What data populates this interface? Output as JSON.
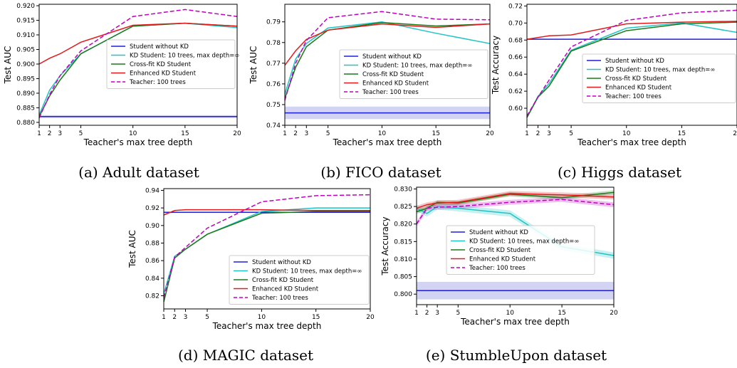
{
  "colors": {
    "student": "#1f1fe0",
    "kd": "#20c4c4",
    "crossfit": "#1a7a1a",
    "enhanced": "#e41a1c",
    "teacher": "#c000c0",
    "band": "#c8c8f0"
  },
  "chart_data": [
    {
      "type": "line",
      "caption": "(a) Adult dataset",
      "xlabel": "Teacher's max tree depth",
      "ylabel": "Test AUC",
      "xlim": [
        1,
        20
      ],
      "ylim": [
        0.879,
        0.9205
      ],
      "xticks": [
        1,
        2,
        3,
        5,
        10,
        15,
        20
      ],
      "yticks": [
        0.88,
        0.885,
        0.89,
        0.895,
        0.9,
        0.905,
        0.91,
        0.915,
        0.92
      ],
      "ytick_labels": [
        "0.880",
        "0.885",
        "0.890",
        "0.895",
        "0.900",
        "0.905",
        "0.910",
        "0.915",
        "0.920"
      ],
      "legend_position": "center-right",
      "x": [
        1,
        2,
        3,
        5,
        10,
        15,
        20
      ],
      "series": [
        {
          "name": "Student without KD",
          "key": "student",
          "values": [
            0.882,
            0.882,
            0.882,
            0.882,
            0.882,
            0.882,
            0.882
          ],
          "band": 0.0005
        },
        {
          "name": "KD Student: 10 trees, max depth=∞",
          "key": "kd",
          "values": [
            0.8825,
            0.891,
            0.896,
            0.9035,
            0.913,
            0.914,
            0.9125
          ]
        },
        {
          "name": "Cross-fit KD Student",
          "key": "crossfit",
          "values": [
            0.882,
            0.889,
            0.8945,
            0.9035,
            0.913,
            0.914,
            0.913
          ]
        },
        {
          "name": "Enhanced KD Student",
          "key": "enhanced",
          "values": [
            0.9,
            0.902,
            0.9035,
            0.9075,
            0.9133,
            0.914,
            0.913
          ]
        },
        {
          "name": "Teacher: 100 trees",
          "key": "teacher",
          "dashed": true,
          "values": [
            0.8815,
            0.8895,
            0.896,
            0.9045,
            0.9163,
            0.9187,
            0.9163
          ]
        }
      ]
    },
    {
      "type": "line",
      "caption": "(b) FICO dataset",
      "xlabel": "Teacher's max tree depth",
      "ylabel": "Test AUC",
      "xlim": [
        1,
        20
      ],
      "ylim": [
        0.74,
        0.7985
      ],
      "xticks": [
        1,
        2,
        3,
        5,
        10,
        15,
        20
      ],
      "yticks": [
        0.74,
        0.75,
        0.76,
        0.77,
        0.78,
        0.79
      ],
      "ytick_labels": [
        "0.74",
        "0.75",
        "0.76",
        "0.77",
        "0.78",
        "0.79"
      ],
      "legend_position": "center-right",
      "x": [
        1,
        2,
        3,
        5,
        10,
        15,
        20
      ],
      "series": [
        {
          "name": "Student without KD",
          "key": "student",
          "values": [
            0.746,
            0.746,
            0.746,
            0.746,
            0.746,
            0.746,
            0.746
          ],
          "band": 0.003
        },
        {
          "name": "KD Student: 10 trees, max depth=∞",
          "key": "kd",
          "values": [
            0.755,
            0.772,
            0.7795,
            0.787,
            0.79,
            0.7845,
            0.7795
          ]
        },
        {
          "name": "Cross-fit KD Student",
          "key": "crossfit",
          "values": [
            0.753,
            0.768,
            0.778,
            0.786,
            0.7897,
            0.788,
            0.789
          ]
        },
        {
          "name": "Enhanced KD Student",
          "key": "enhanced",
          "values": [
            0.769,
            0.776,
            0.7815,
            0.786,
            0.789,
            0.7873,
            0.789
          ]
        },
        {
          "name": "Teacher: 100 trees",
          "key": "teacher",
          "dashed": true,
          "values": [
            0.752,
            0.77,
            0.781,
            0.792,
            0.795,
            0.7913,
            0.791
          ]
        }
      ]
    },
    {
      "type": "line",
      "caption": "(c) Higgs dataset",
      "xlabel": "Teacher's max tree depth",
      "ylabel": "Test Accuracy",
      "xlim": [
        1,
        20
      ],
      "ylim": [
        0.58,
        0.722
      ],
      "xticks": [
        1,
        2,
        3,
        5,
        10,
        15,
        20
      ],
      "yticks": [
        0.6,
        0.62,
        0.64,
        0.66,
        0.68,
        0.7,
        0.72
      ],
      "ytick_labels": [
        "0.60",
        "0.62",
        "0.64",
        "0.66",
        "0.68",
        "0.70",
        "0.72"
      ],
      "legend_position": "bottom-right",
      "x": [
        1,
        2,
        3,
        5,
        10,
        15,
        20
      ],
      "series": [
        {
          "name": "Student without KD",
          "key": "student",
          "values": [
            0.681,
            0.681,
            0.681,
            0.681,
            0.681,
            0.681,
            0.681
          ]
        },
        {
          "name": "KD Student: 10 trees, max depth=∞",
          "key": "kd",
          "values": [
            0.589,
            0.614,
            0.629,
            0.668,
            0.694,
            0.7,
            0.689
          ]
        },
        {
          "name": "Cross-fit KD Student",
          "key": "crossfit",
          "values": [
            0.589,
            0.613,
            0.626,
            0.667,
            0.691,
            0.699,
            0.701
          ]
        },
        {
          "name": "Enhanced KD Student",
          "key": "enhanced",
          "values": [
            0.681,
            0.683,
            0.685,
            0.686,
            0.699,
            0.701,
            0.702
          ]
        },
        {
          "name": "Teacher: 100 trees",
          "key": "teacher",
          "dashed": true,
          "values": [
            0.591,
            0.613,
            0.633,
            0.672,
            0.703,
            0.712,
            0.715
          ]
        }
      ]
    },
    {
      "type": "line",
      "caption": "(d) MAGIC dataset",
      "xlabel": "Teacher's max tree depth",
      "ylabel": "Test AUC",
      "xlim": [
        1,
        20
      ],
      "ylim": [
        0.805,
        0.942
      ],
      "xticks": [
        1,
        2,
        3,
        5,
        10,
        15,
        20
      ],
      "yticks": [
        0.82,
        0.84,
        0.86,
        0.88,
        0.9,
        0.92,
        0.94
      ],
      "ytick_labels": [
        "0.82",
        "0.84",
        "0.86",
        "0.88",
        "0.90",
        "0.92",
        "0.94"
      ],
      "legend_position": "bottom-right",
      "x": [
        1,
        2,
        3,
        5,
        10,
        15,
        20
      ],
      "series": [
        {
          "name": "Student without KD",
          "key": "student",
          "values": [
            0.915,
            0.915,
            0.915,
            0.915,
            0.915,
            0.915,
            0.915
          ]
        },
        {
          "name": "KD Student: 10 trees, max depth=∞",
          "key": "kd",
          "values": [
            0.822,
            0.865,
            0.873,
            0.89,
            0.916,
            0.92,
            0.92
          ]
        },
        {
          "name": "Cross-fit KD Student",
          "key": "crossfit",
          "values": [
            0.813,
            0.863,
            0.873,
            0.89,
            0.914,
            0.916,
            0.916
          ]
        },
        {
          "name": "Enhanced KD Student",
          "key": "enhanced",
          "values": [
            0.912,
            0.917,
            0.918,
            0.918,
            0.918,
            0.917,
            0.917
          ]
        },
        {
          "name": "Teacher: 100 trees",
          "key": "teacher",
          "dashed": true,
          "values": [
            0.818,
            0.864,
            0.875,
            0.897,
            0.927,
            0.934,
            0.935
          ]
        }
      ]
    },
    {
      "type": "line",
      "caption": "(e) StumbleUpon dataset",
      "xlabel": "Teacher's max tree depth",
      "ylabel": "Test Accuracy",
      "xlim": [
        1,
        20
      ],
      "ylim": [
        0.797,
        0.8305
      ],
      "xticks": [
        1,
        2,
        3,
        5,
        10,
        15,
        20
      ],
      "yticks": [
        0.8,
        0.805,
        0.81,
        0.815,
        0.82,
        0.825,
        0.83
      ],
      "ytick_labels": [
        "0.800",
        "0.805",
        "0.810",
        "0.815",
        "0.820",
        "0.825",
        "0.830"
      ],
      "legend_position": "center",
      "x": [
        1,
        2,
        3,
        5,
        10,
        15,
        20
      ],
      "series": [
        {
          "name": "Student without KD",
          "key": "student",
          "values": [
            0.801,
            0.801,
            0.801,
            0.801,
            0.801,
            0.801,
            0.801
          ],
          "band": 0.0025
        },
        {
          "name": "KD Student: 10 trees, max depth=∞",
          "key": "kd",
          "values": [
            0.8245,
            0.823,
            0.825,
            0.8245,
            0.823,
            0.8135,
            0.811
          ],
          "band": 0.0009
        },
        {
          "name": "Cross-fit KD Student",
          "key": "crossfit",
          "values": [
            0.8235,
            0.8245,
            0.8262,
            0.826,
            0.8285,
            0.8275,
            0.829
          ],
          "band": 0.0006
        },
        {
          "name": "Enhanced KD Student",
          "key": "enhanced",
          "values": [
            0.8245,
            0.8255,
            0.826,
            0.8262,
            0.8287,
            0.8283,
            0.8277
          ],
          "band": 0.0007
        },
        {
          "name": "Teacher: 100 trees",
          "key": "teacher",
          "dashed": true,
          "values": [
            0.82,
            0.8245,
            0.8248,
            0.825,
            0.8262,
            0.827,
            0.8255
          ],
          "band": 0.0007
        }
      ]
    }
  ]
}
